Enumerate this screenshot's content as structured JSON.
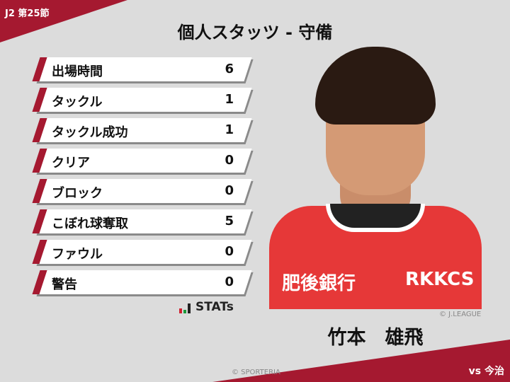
{
  "header": {
    "round": "J2 第25節",
    "title": "個人スタッツ - 守備",
    "opponent": "vs 今治"
  },
  "stats": [
    {
      "label": "出場時間",
      "value": "6"
    },
    {
      "label": "タックル",
      "value": "1"
    },
    {
      "label": "タックル成功",
      "value": "1"
    },
    {
      "label": "クリア",
      "value": "0"
    },
    {
      "label": "ブロック",
      "value": "0"
    },
    {
      "label": "こぼれ球奪取",
      "value": "5"
    },
    {
      "label": "ファウル",
      "value": "0"
    },
    {
      "label": "警告",
      "value": "0"
    }
  ],
  "logo": {
    "text": "STATs"
  },
  "player": {
    "name": "竹本　雄飛",
    "photo_credit": "© J.LEAGUE",
    "sponsors": [
      "肥後銀行",
      "RKKCS"
    ]
  },
  "footer": {
    "copyright": "© SPORTERIA"
  },
  "colors": {
    "accent": "#a51930",
    "background": "#dcdcdc"
  }
}
